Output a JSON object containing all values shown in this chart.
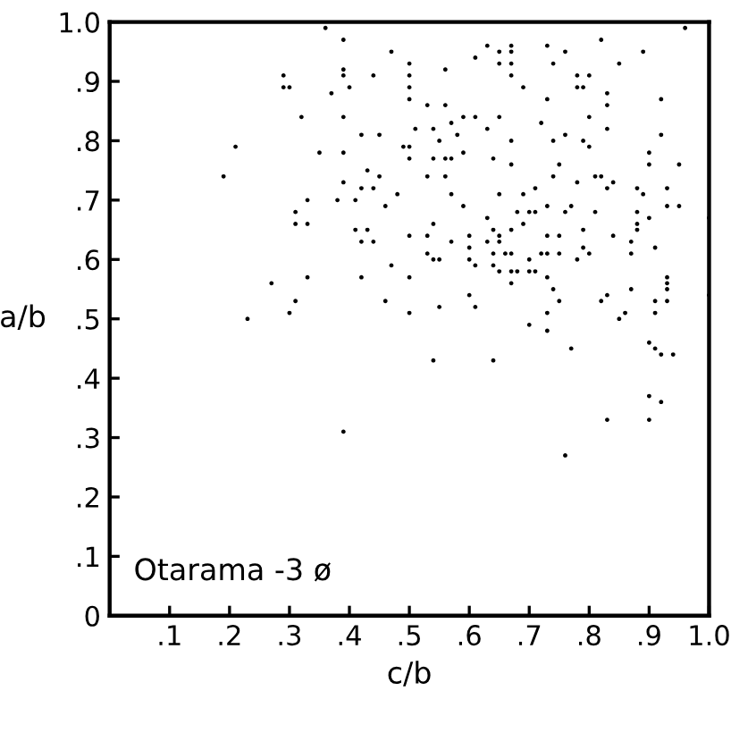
{
  "chart_data": {
    "type": "scatter",
    "xlabel": "c/b",
    "ylabel": "a/b",
    "annotations": [
      "Otarama -3 ø"
    ],
    "xlim": [
      0,
      1.0
    ],
    "ylim": [
      0,
      1.0
    ],
    "xticks": [
      {
        "value": 0.1,
        "label": ".1"
      },
      {
        "value": 0.2,
        "label": ".2"
      },
      {
        "value": 0.3,
        "label": ".3"
      },
      {
        "value": 0.4,
        "label": ".4"
      },
      {
        "value": 0.5,
        "label": ".5"
      },
      {
        "value": 0.6,
        "label": ".6"
      },
      {
        "value": 0.7,
        "label": ".7"
      },
      {
        "value": 0.8,
        "label": ".8"
      },
      {
        "value": 0.9,
        "label": ".9"
      },
      {
        "value": 1.0,
        "label": "1.0"
      }
    ],
    "yticks": [
      0,
      {
        "value": 0.1,
        "label": ".1"
      },
      {
        "value": 0.2,
        "label": ".2"
      },
      {
        "value": 0.3,
        "label": ".3"
      },
      {
        "value": 0.4,
        "label": ".4"
      },
      {
        "value": 0.5,
        "label": ".5"
      },
      {
        "value": 0.6,
        "label": ".6"
      },
      {
        "value": 0.7,
        "label": ".7"
      },
      {
        "value": 0.8,
        "label": ".8"
      },
      {
        "value": 0.9,
        "label": ".9"
      },
      {
        "value": 1.0,
        "label": "1.0"
      }
    ],
    "grid": false,
    "marker": "circle",
    "series": [
      {
        "color": "#000000",
        "x": [
          0.36,
          0.39,
          0.47,
          0.5,
          0.29,
          0.29,
          0.3,
          0.39,
          0.39,
          0.4,
          0.44,
          0.5,
          0.5,
          0.37,
          0.32,
          0.39,
          0.42,
          0.45,
          0.49,
          0.5,
          0.21,
          0.35,
          0.39,
          0.5,
          0.43,
          0.45,
          0.19,
          0.39,
          0.42,
          0.44,
          0.48,
          0.33,
          0.38,
          0.41,
          0.46,
          0.31,
          0.31,
          0.33,
          0.41,
          0.43,
          0.42,
          0.44,
          0.5,
          0.47,
          0.42,
          0.5,
          0.33,
          0.27,
          0.31,
          0.46,
          0.3,
          0.5,
          0.23,
          0.39,
          0.96,
          0.82,
          0.63,
          0.61,
          0.65,
          0.67,
          0.67,
          0.65,
          0.67,
          0.73,
          0.76,
          0.74,
          0.85,
          0.89,
          0.56,
          0.67,
          0.78,
          0.8,
          0.78,
          0.79,
          0.83,
          0.69,
          0.5,
          0.53,
          0.56,
          0.73,
          0.92,
          0.83,
          0.59,
          0.57,
          0.61,
          0.65,
          0.63,
          0.72,
          0.8,
          0.83,
          0.54,
          0.51,
          0.58,
          0.55,
          0.67,
          0.74,
          0.76,
          0.79,
          0.8,
          0.92,
          0.9,
          0.54,
          0.56,
          0.57,
          0.59,
          0.64,
          0.67,
          0.75,
          0.95,
          0.9,
          0.53,
          0.56,
          0.74,
          0.78,
          0.81,
          0.82,
          0.84,
          0.57,
          0.65,
          0.69,
          0.71,
          0.83,
          0.88,
          0.93,
          0.89,
          0.59,
          0.68,
          0.7,
          0.71,
          0.73,
          0.76,
          0.77,
          0.81,
          0.88,
          0.9,
          0.93,
          0.95,
          0.63,
          0.69,
          0.54,
          0.64,
          0.65,
          0.67,
          0.6,
          0.53,
          0.73,
          0.75,
          0.79,
          0.84,
          0.88,
          0.88,
          1.0,
          0.57,
          0.63,
          0.65,
          0.6,
          0.87,
          0.87,
          0.79,
          0.8,
          0.91,
          0.53,
          0.54,
          0.55,
          0.6,
          0.61,
          0.64,
          0.66,
          0.67,
          0.7,
          0.72,
          0.73,
          0.75,
          0.78,
          0.64,
          0.65,
          0.67,
          0.68,
          0.7,
          0.71,
          0.73,
          0.67,
          0.6,
          0.55,
          0.61,
          0.74,
          0.75,
          0.83,
          0.82,
          0.87,
          0.93,
          0.93,
          0.93,
          0.91,
          0.93,
          1.0,
          0.73,
          0.85,
          0.86,
          0.91,
          0.7,
          0.73,
          0.54,
          0.64,
          0.77,
          0.9,
          0.91,
          0.92,
          0.94,
          0.9,
          0.92,
          0.83,
          0.9,
          0.76
        ],
        "values": [
          0.99,
          0.97,
          0.95,
          0.93,
          0.91,
          0.89,
          0.89,
          0.92,
          0.91,
          0.89,
          0.91,
          0.91,
          0.89,
          0.88,
          0.84,
          0.84,
          0.81,
          0.81,
          0.79,
          0.79,
          0.79,
          0.78,
          0.78,
          0.77,
          0.75,
          0.74,
          0.74,
          0.73,
          0.72,
          0.72,
          0.71,
          0.7,
          0.7,
          0.7,
          0.69,
          0.68,
          0.66,
          0.66,
          0.65,
          0.65,
          0.63,
          0.63,
          0.64,
          0.59,
          0.57,
          0.57,
          0.57,
          0.56,
          0.53,
          0.53,
          0.51,
          0.51,
          0.5,
          0.31,
          0.99,
          0.97,
          0.96,
          0.94,
          0.95,
          0.96,
          0.95,
          0.93,
          0.93,
          0.96,
          0.95,
          0.93,
          0.93,
          0.95,
          0.92,
          0.91,
          0.91,
          0.91,
          0.89,
          0.89,
          0.88,
          0.89,
          0.87,
          0.86,
          0.86,
          0.87,
          0.87,
          0.86,
          0.84,
          0.83,
          0.84,
          0.84,
          0.82,
          0.83,
          0.84,
          0.82,
          0.82,
          0.82,
          0.81,
          0.8,
          0.8,
          0.8,
          0.81,
          0.8,
          0.79,
          0.81,
          0.78,
          0.77,
          0.77,
          0.77,
          0.78,
          0.77,
          0.76,
          0.76,
          0.76,
          0.76,
          0.74,
          0.74,
          0.74,
          0.73,
          0.74,
          0.74,
          0.73,
          0.71,
          0.71,
          0.71,
          0.72,
          0.72,
          0.72,
          0.72,
          0.71,
          0.69,
          0.68,
          0.68,
          0.68,
          0.69,
          0.68,
          0.69,
          0.68,
          0.68,
          0.67,
          0.69,
          0.69,
          0.67,
          0.66,
          0.66,
          0.65,
          0.64,
          0.65,
          0.64,
          0.64,
          0.64,
          0.64,
          0.65,
          0.64,
          0.66,
          0.65,
          0.67,
          0.63,
          0.63,
          0.63,
          0.62,
          0.63,
          0.61,
          0.62,
          0.61,
          0.62,
          0.61,
          0.6,
          0.6,
          0.6,
          0.59,
          0.61,
          0.61,
          0.61,
          0.6,
          0.61,
          0.61,
          0.61,
          0.6,
          0.59,
          0.58,
          0.58,
          0.58,
          0.58,
          0.58,
          0.57,
          0.56,
          0.54,
          0.52,
          0.52,
          0.55,
          0.53,
          0.54,
          0.53,
          0.55,
          0.57,
          0.56,
          0.55,
          0.53,
          0.53,
          0.54,
          0.51,
          0.5,
          0.51,
          0.51,
          0.49,
          0.48,
          0.43,
          0.43,
          0.45,
          0.46,
          0.45,
          0.44,
          0.44,
          0.37,
          0.36,
          0.33,
          0.33,
          0.27
        ]
      }
    ]
  }
}
